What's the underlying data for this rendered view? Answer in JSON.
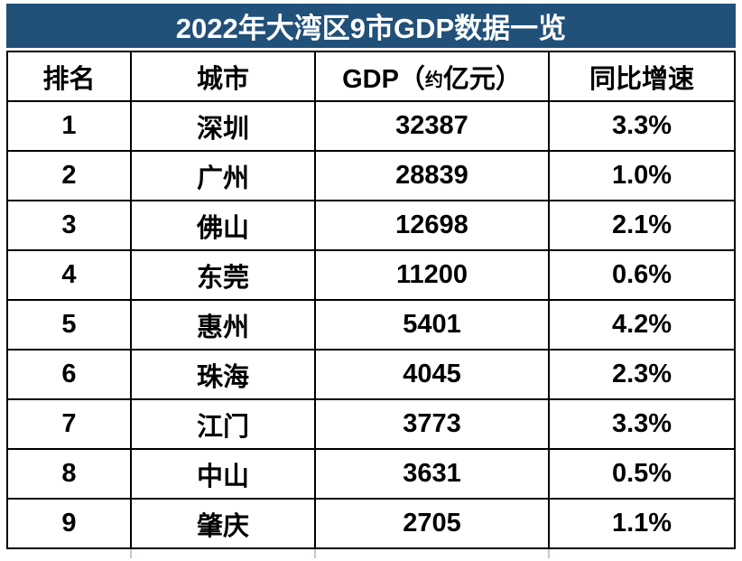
{
  "chart_data": {
    "type": "table",
    "title": "2022年大湾区9市GDP数据一览",
    "columns": [
      "排名",
      "城市",
      "GDP（约 亿元）",
      "同比增速"
    ],
    "gdp_header_parts": [
      "GDP（",
      "约",
      " 亿元）"
    ],
    "rows": [
      [
        "1",
        "深圳",
        "32387",
        "3.3%"
      ],
      [
        "2",
        "广州",
        "28839",
        "1.0%"
      ],
      [
        "3",
        "佛山",
        "12698",
        "2.1%"
      ],
      [
        "4",
        "东莞",
        "11200",
        "0.6%"
      ],
      [
        "5",
        "惠州",
        "5401",
        "4.2%"
      ],
      [
        "6",
        "珠海",
        "4045",
        "2.3%"
      ],
      [
        "7",
        "江门",
        "3773",
        "3.3%"
      ],
      [
        "8",
        "中山",
        "3631",
        "0.5%"
      ],
      [
        "9",
        "肇庆",
        "2705",
        "1.1%"
      ]
    ],
    "layout": {
      "header_position": "top",
      "grid": "on"
    }
  },
  "colors": {
    "title_bg": "#215079",
    "title_text": "#ffffff",
    "border": "#000000",
    "faint_divider": "#c3c9d1",
    "cell_text": "#000000",
    "row_bg": "#ffffff"
  }
}
